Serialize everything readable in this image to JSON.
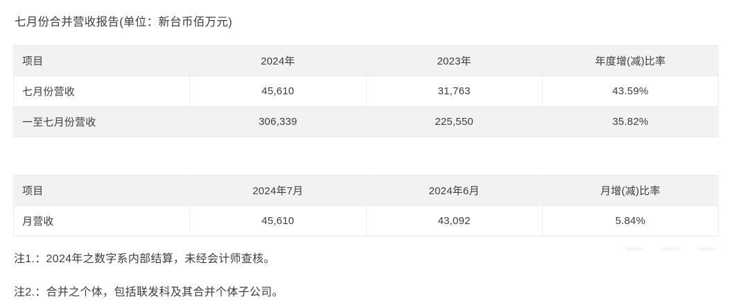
{
  "page": {
    "title": "七月份合并营收报告(单位：新台币佰万元)"
  },
  "colors": {
    "text": "#3c3c3c",
    "header_bg": "#f2f2f2",
    "alt_row_bg": "#f2f2f2",
    "border": "#ececec",
    "background": "#ffffff"
  },
  "tables": [
    {
      "name": "yearly-comparison",
      "headers": [
        "项目",
        "2024年",
        "2023年",
        "年度增(减)比率"
      ],
      "rows": [
        [
          "七月份营收",
          "45,610",
          "31,763",
          "43.59%"
        ],
        [
          "一至七月份营收",
          "306,339",
          "225,550",
          "35.82%"
        ]
      ]
    },
    {
      "name": "monthly-comparison",
      "headers": [
        "项目",
        "2024年7月",
        "2024年6月",
        "月增(减)比率"
      ],
      "rows": [
        [
          "月营收",
          "45,610",
          "43,092",
          "5.84%"
        ]
      ]
    }
  ],
  "notes": [
    "注1.：2024年之数字系内部结算，未经会计师查核。",
    "注2.：合并之个体，包括联发科及其合并个体子公司。"
  ]
}
